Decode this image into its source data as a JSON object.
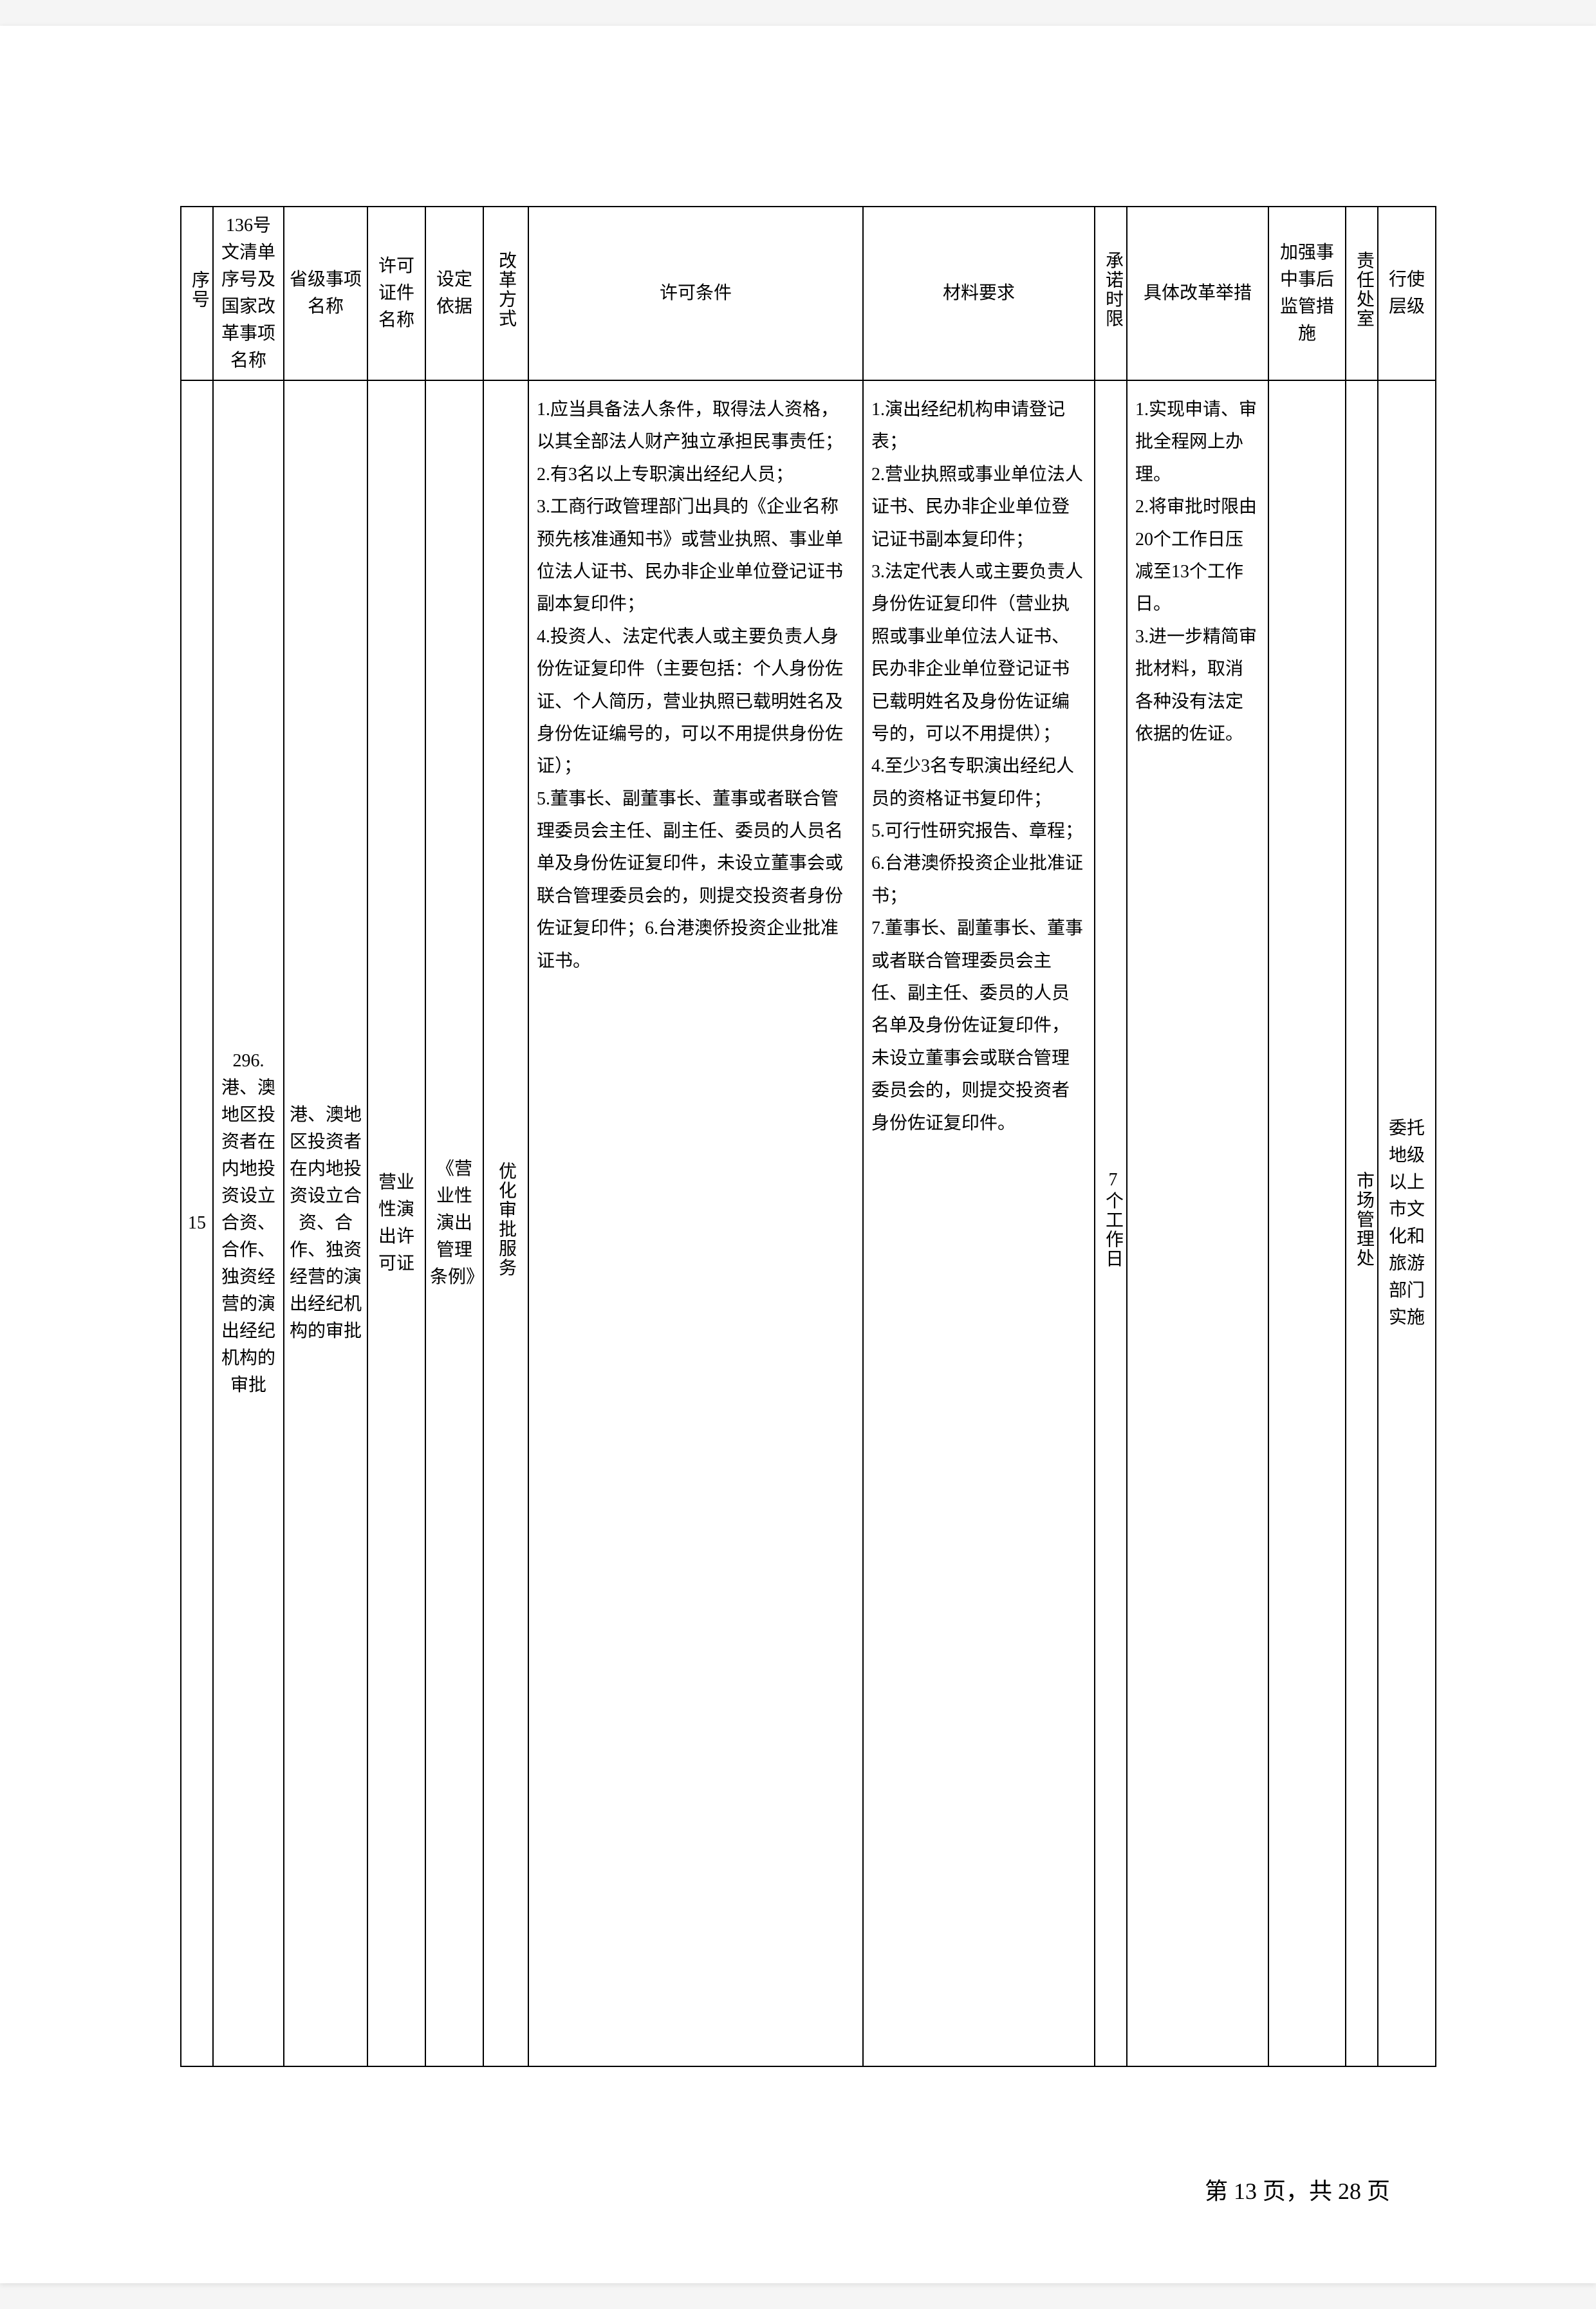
{
  "headers": {
    "seq": "序号",
    "file136": "136号文清单序号及国家改革事项名称",
    "provincial": "省级事项名称",
    "certName": "许可证件名称",
    "basis": "设定依据",
    "reformMode": "改革方式",
    "conditions": "许可条件",
    "materials": "材料要求",
    "timeLimit": "承诺时限",
    "measures": "具体改革举措",
    "supervision": "加强事中事后监管措施",
    "respOffice": "责任处室",
    "execLevel": "行使层级"
  },
  "row": {
    "seq": "15",
    "file136": "296.港、澳地区投资者在内地投资设立合资、合作、独资经营的演出经纪机构的审批",
    "provincial": "港、澳地区投资者在内地投资设立合资、合作、独资经营的演出经纪机构的审批",
    "certName": "营业性演出许可证",
    "basis": "《营业性演出管理条例》",
    "reformMode": "优化审批服务",
    "conditions": "1.应当具备法人条件，取得法人资格，以其全部法人财产独立承担民事责任；\n2.有3名以上专职演出经纪人员；\n3.工商行政管理部门出具的《企业名称预先核准通知书》或营业执照、事业单位法人证书、民办非企业单位登记证书副本复印件；\n4.投资人、法定代表人或主要负责人身份佐证复印件（主要包括：个人身份佐证、个人简历，营业执照已载明姓名及身份佐证编号的，可以不用提供身份佐证）；\n5.董事长、副董事长、董事或者联合管理委员会主任、副主任、委员的人员名单及身份佐证复印件，未设立董事会或联合管理委员会的，则提交投资者身份佐证复印件；6.台港澳侨投资企业批准证书。",
    "materials": "1.演出经纪机构申请登记表；\n2.营业执照或事业单位法人证书、民办非企业单位登记证书副本复印件；\n3.法定代表人或主要负责人身份佐证复印件（营业执照或事业单位法人证书、民办非企业单位登记证书已载明姓名及身份佐证编号的，可以不用提供）；\n4.至少3名专职演出经纪人员的资格证书复印件；\n5.可行性研究报告、章程；\n6.台港澳侨投资企业批准证书；\n7.董事长、副董事长、董事或者联合管理委员会主任、副主任、委员的人员名单及身份佐证复印件，未设立董事会或联合管理委员会的，则提交投资者身份佐证复印件。",
    "timeLimit": "7个工作日",
    "measures": "1.实现申请、审批全程网上办理。\n2.将审批时限由20个工作日压减至13个工作日。\n3.进一步精简审批材料，取消各种没有法定依据的佐证。",
    "supervision": "",
    "respOffice": "市场管理处",
    "execLevel": "委托地级以上市文化和旅游部门实施"
  },
  "footer": "第 13 页，共 28 页",
  "colors": {
    "border": "#000000",
    "background": "#ffffff",
    "text": "#000000"
  }
}
